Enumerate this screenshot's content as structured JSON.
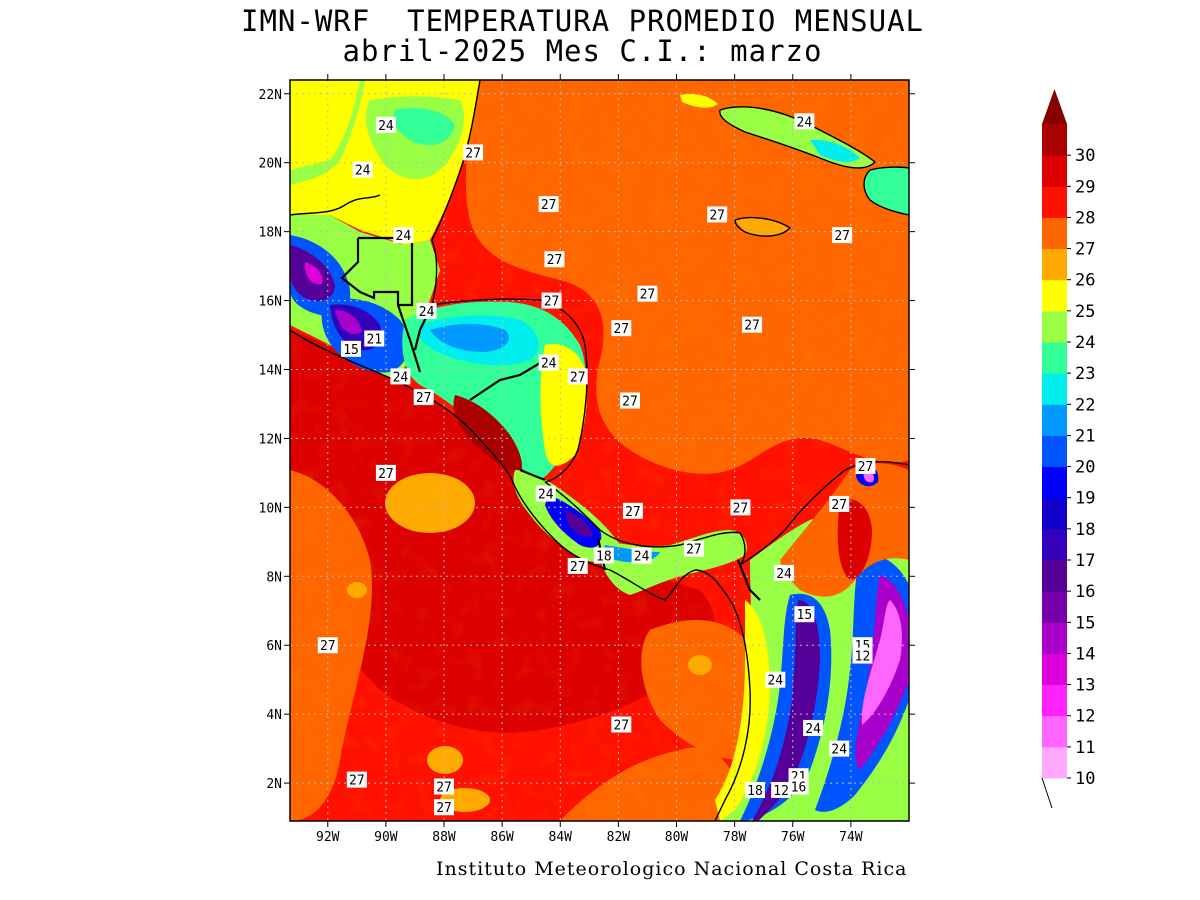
{
  "header": {
    "title_line1": "IMN-WRF  TEMPERATURA PROMEDIO MENSUAL",
    "title_line2": "abril-2025 Mes C.I.: marzo"
  },
  "footer": {
    "credit": "Instituto Meteorologico Nacional Costa Rica"
  },
  "map": {
    "extent": {
      "lon_min": -93.3,
      "lon_max": -72.0,
      "lat_min": 0.9,
      "lat_max": 22.4
    },
    "lon_ticks": [
      {
        "value": -92,
        "label": "92W"
      },
      {
        "value": -90,
        "label": "90W"
      },
      {
        "value": -88,
        "label": "88W"
      },
      {
        "value": -86,
        "label": "86W"
      },
      {
        "value": -84,
        "label": "84W"
      },
      {
        "value": -82,
        "label": "82W"
      },
      {
        "value": -80,
        "label": "80W"
      },
      {
        "value": -78,
        "label": "78W"
      },
      {
        "value": -76,
        "label": "76W"
      },
      {
        "value": -74,
        "label": "74W"
      }
    ],
    "lat_ticks": [
      {
        "value": 22,
        "label": "22N"
      },
      {
        "value": 20,
        "label": "20N"
      },
      {
        "value": 18,
        "label": "18N"
      },
      {
        "value": 16,
        "label": "16N"
      },
      {
        "value": 14,
        "label": "14N"
      },
      {
        "value": 12,
        "label": "12N"
      },
      {
        "value": 10,
        "label": "10N"
      },
      {
        "value": 8,
        "label": "8N"
      },
      {
        "value": 6,
        "label": "6N"
      },
      {
        "value": 4,
        "label": "4N"
      },
      {
        "value": 2,
        "label": "2N"
      }
    ],
    "gridlines": true,
    "contour_labels": [
      {
        "lon": -90.0,
        "lat": 21.1,
        "text": "24"
      },
      {
        "lon": -90.8,
        "lat": 19.8,
        "text": "24"
      },
      {
        "lon": -87.0,
        "lat": 20.3,
        "text": "27"
      },
      {
        "lon": -89.4,
        "lat": 17.9,
        "text": "24"
      },
      {
        "lon": -84.4,
        "lat": 18.8,
        "text": "27"
      },
      {
        "lon": -84.2,
        "lat": 17.2,
        "text": "27"
      },
      {
        "lon": -84.3,
        "lat": 16.0,
        "text": "27"
      },
      {
        "lon": -88.6,
        "lat": 15.7,
        "text": "24"
      },
      {
        "lon": -90.4,
        "lat": 14.9,
        "text": "21"
      },
      {
        "lon": -91.2,
        "lat": 14.6,
        "text": "15"
      },
      {
        "lon": -89.5,
        "lat": 13.8,
        "text": "24"
      },
      {
        "lon": -88.7,
        "lat": 13.2,
        "text": "27"
      },
      {
        "lon": -84.4,
        "lat": 14.2,
        "text": "24"
      },
      {
        "lon": -83.4,
        "lat": 13.8,
        "text": "27"
      },
      {
        "lon": -81.6,
        "lat": 13.1,
        "text": "27"
      },
      {
        "lon": -81.0,
        "lat": 16.2,
        "text": "27"
      },
      {
        "lon": -81.9,
        "lat": 15.2,
        "text": "27"
      },
      {
        "lon": -78.6,
        "lat": 18.5,
        "text": "27"
      },
      {
        "lon": -77.4,
        "lat": 15.3,
        "text": "27"
      },
      {
        "lon": -75.6,
        "lat": 21.2,
        "text": "24"
      },
      {
        "lon": -74.3,
        "lat": 17.9,
        "text": "27"
      },
      {
        "lon": -90.0,
        "lat": 11.0,
        "text": "27"
      },
      {
        "lon": -84.5,
        "lat": 10.4,
        "text": "24"
      },
      {
        "lon": -81.5,
        "lat": 9.9,
        "text": "27"
      },
      {
        "lon": -82.5,
        "lat": 8.6,
        "text": "18"
      },
      {
        "lon": -81.2,
        "lat": 8.6,
        "text": "24"
      },
      {
        "lon": -83.4,
        "lat": 8.3,
        "text": "27"
      },
      {
        "lon": -79.4,
        "lat": 8.8,
        "text": "27"
      },
      {
        "lon": -77.8,
        "lat": 10.0,
        "text": "27"
      },
      {
        "lon": -74.4,
        "lat": 10.1,
        "text": "27"
      },
      {
        "lon": -73.5,
        "lat": 11.2,
        "text": "27"
      },
      {
        "lon": -76.3,
        "lat": 8.1,
        "text": "24"
      },
      {
        "lon": -75.6,
        "lat": 6.9,
        "text": "15"
      },
      {
        "lon": -73.6,
        "lat": 6.0,
        "text": "15"
      },
      {
        "lon": -73.6,
        "lat": 5.7,
        "text": "12"
      },
      {
        "lon": -92.0,
        "lat": 6.0,
        "text": "27"
      },
      {
        "lon": -76.6,
        "lat": 5.0,
        "text": "24"
      },
      {
        "lon": -75.3,
        "lat": 3.6,
        "text": "24"
      },
      {
        "lon": -74.4,
        "lat": 3.0,
        "text": "24"
      },
      {
        "lon": -81.9,
        "lat": 3.7,
        "text": "27"
      },
      {
        "lon": -91.0,
        "lat": 2.1,
        "text": "27"
      },
      {
        "lon": -88.0,
        "lat": 1.9,
        "text": "27"
      },
      {
        "lon": -88.0,
        "lat": 1.3,
        "text": "27"
      },
      {
        "lon": -77.3,
        "lat": 1.8,
        "text": "18"
      },
      {
        "lon": -76.4,
        "lat": 1.8,
        "text": "12"
      },
      {
        "lon": -75.8,
        "lat": 2.2,
        "text": "21"
      },
      {
        "lon": -75.8,
        "lat": 1.9,
        "text": "16"
      }
    ]
  },
  "colorbar": {
    "levels": [
      "10",
      "11",
      "12",
      "13",
      "14",
      "15",
      "16",
      "17",
      "18",
      "19",
      "20",
      "21",
      "22",
      "23",
      "24",
      "25",
      "26",
      "27",
      "28",
      "29",
      "30"
    ],
    "colors": [
      "#ffaaff",
      "#ff66ff",
      "#ff22ff",
      "#dd00dd",
      "#aa00cc",
      "#7700aa",
      "#550099",
      "#3300bb",
      "#1100cc",
      "#0000ff",
      "#0055ff",
      "#0099ff",
      "#00eeee",
      "#33ff99",
      "#99ff44",
      "#ffff00",
      "#ffaa00",
      "#ff6600",
      "#ff1100",
      "#dd0000",
      "#aa0000"
    ],
    "over_color": "#880000"
  }
}
